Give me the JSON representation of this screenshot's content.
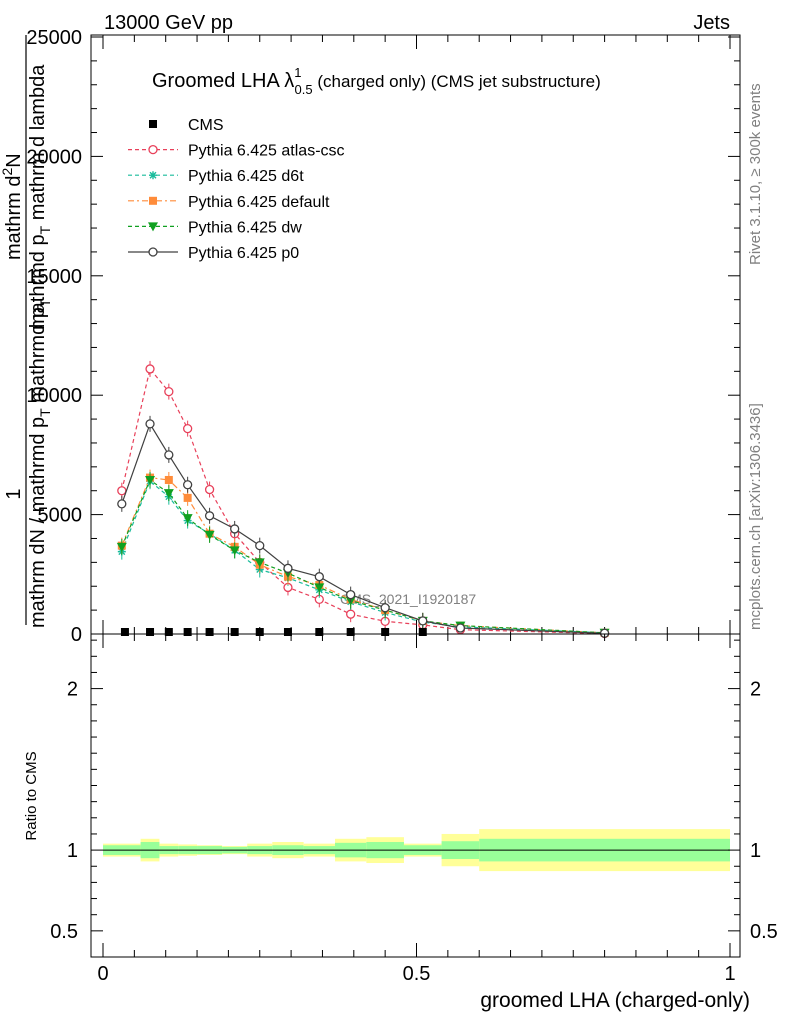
{
  "header": {
    "left": "13000 GeV pp",
    "right": "Jets"
  },
  "side": {
    "rivet": "Rivet 3.1.10, ≥ 300k events",
    "mcplots": "mcplots.cern.ch [arXiv:1306.3436]"
  },
  "chart_data": [
    {
      "type": "line",
      "title": "Groomed LHA λ^1_0.5 (charged only) (CMS jet substructure)",
      "title_main": "Groomed LHA ",
      "title_lambda": "λ",
      "title_sup": "1",
      "title_sub": "0.5",
      "title_tail": " (charged only) (CMS jet substructure)",
      "ylabel_lines": [
        "1",
        "mathrm dN / mathrmd p_T mathrmd p_T",
        "mathrm d^2N",
        "mathrm d lambda",
        "mathrm d p_T mathrm d lambda"
      ],
      "ylabel_num": "1",
      "ylabel_den": "mathrm dN / mathrmd p",
      "ylabel_den_sub": "T",
      "ylabel_den_tail": " mathrmd p",
      "ylabel_den_sub2": "T",
      "ylabel_right_num": "mathrm d",
      "ylabel_right_sup": "2",
      "ylabel_right_num_tail": "N",
      "ylabel_right_den": "mathrmd p",
      "ylabel_right_den_sub": "T",
      "ylabel_right_den_tail": " mathrm d lambda",
      "watermark": "CMS_2021_I1920187",
      "xlim": [
        0,
        1
      ],
      "ylim": [
        0,
        25000
      ],
      "yticks": [
        "0",
        "5000",
        "10000",
        "15000",
        "20000",
        "25000"
      ],
      "ytick_values": [
        0,
        5000,
        10000,
        15000,
        20000,
        25000
      ],
      "legend_position": "top-left",
      "series": [
        {
          "name": "CMS",
          "color": "#000000",
          "marker": "square",
          "x": [
            0.035,
            0.075,
            0.105,
            0.135,
            0.17,
            0.21,
            0.25,
            0.295,
            0.345,
            0.395,
            0.45,
            0.51
          ],
          "y": [
            20,
            30,
            30,
            25,
            25,
            20,
            20,
            20,
            18,
            15,
            12,
            8
          ]
        },
        {
          "name": "Pythia 6.425 atlas-csc",
          "color": "#e8405a",
          "marker": "open-circle",
          "dash": "4,3",
          "x": [
            0.03,
            0.075,
            0.105,
            0.135,
            0.17,
            0.21,
            0.25,
            0.295,
            0.345,
            0.395,
            0.45,
            0.51,
            0.57,
            0.8
          ],
          "y": [
            6000,
            11100,
            10150,
            8600,
            6050,
            4200,
            3000,
            1950,
            1450,
            830,
            530,
            380,
            180,
            20
          ]
        },
        {
          "name": "Pythia 6.425 d6t",
          "color": "#1abc9c",
          "marker": "star",
          "dash": "4,3",
          "x": [
            0.03,
            0.075,
            0.105,
            0.135,
            0.17,
            0.21,
            0.25,
            0.295,
            0.345,
            0.395,
            0.45,
            0.51,
            0.57,
            0.8
          ],
          "y": [
            3450,
            6400,
            5750,
            4750,
            4200,
            3500,
            2700,
            2350,
            1850,
            1350,
            900,
            500,
            300,
            50
          ]
        },
        {
          "name": "Pythia 6.425 default",
          "color": "#ff8c3a",
          "marker": "square",
          "dash": "6,3,2,3",
          "x": [
            0.03,
            0.075,
            0.105,
            0.135,
            0.17,
            0.21,
            0.25,
            0.295,
            0.345,
            0.395,
            0.45,
            0.51,
            0.57,
            0.8
          ],
          "y": [
            3700,
            6550,
            6450,
            5700,
            4200,
            3650,
            2900,
            2400,
            2050,
            1450,
            1000,
            550,
            350,
            50
          ]
        },
        {
          "name": "Pythia 6.425 dw",
          "color": "#10a020",
          "marker": "down-triangle",
          "dash": "4,3",
          "x": [
            0.03,
            0.075,
            0.105,
            0.135,
            0.17,
            0.21,
            0.25,
            0.295,
            0.345,
            0.395,
            0.45,
            0.51,
            0.57,
            0.8
          ],
          "y": [
            3650,
            6450,
            5900,
            4850,
            4150,
            3500,
            3000,
            2550,
            1950,
            1400,
            1000,
            550,
            350,
            50
          ]
        },
        {
          "name": "Pythia 6.425 p0",
          "color": "#404040",
          "marker": "open-circle",
          "dash": "",
          "x": [
            0.03,
            0.075,
            0.105,
            0.135,
            0.17,
            0.21,
            0.25,
            0.295,
            0.345,
            0.395,
            0.45,
            0.51,
            0.57,
            0.8
          ],
          "y": [
            5450,
            8800,
            7500,
            6250,
            4950,
            4400,
            3700,
            2750,
            2400,
            1650,
            1100,
            550,
            250,
            30
          ]
        }
      ]
    },
    {
      "type": "area",
      "ylabel": "Ratio to CMS",
      "xlabel": "groomed LHA (charged-only)",
      "xlim": [
        0,
        1
      ],
      "ylim": [
        0.4,
        2.4
      ],
      "xticks": [
        "0",
        "0.5",
        "1"
      ],
      "xtick_values": [
        0,
        0.5,
        1
      ],
      "yticks": [
        "0.5",
        "1",
        "2"
      ],
      "ytick_values": [
        0.5,
        1,
        2
      ],
      "bin_edges": [
        0.0,
        0.06,
        0.09,
        0.12,
        0.15,
        0.19,
        0.23,
        0.27,
        0.32,
        0.37,
        0.42,
        0.48,
        0.54,
        0.6,
        1.0
      ],
      "band_inner": [
        [
          0.97,
          1.03
        ],
        [
          0.95,
          1.05
        ],
        [
          0.975,
          1.025
        ],
        [
          0.975,
          1.025
        ],
        [
          0.975,
          1.025
        ],
        [
          0.98,
          1.02
        ],
        [
          0.975,
          1.025
        ],
        [
          0.97,
          1.03
        ],
        [
          0.975,
          1.025
        ],
        [
          0.955,
          1.045
        ],
        [
          0.95,
          1.05
        ],
        [
          0.97,
          1.03
        ],
        [
          0.945,
          1.055
        ],
        [
          0.93,
          1.07
        ]
      ],
      "band_outer": [
        [
          0.96,
          1.04
        ],
        [
          0.93,
          1.07
        ],
        [
          0.96,
          1.04
        ],
        [
          0.965,
          1.035
        ],
        [
          0.97,
          1.03
        ],
        [
          0.975,
          1.025
        ],
        [
          0.96,
          1.04
        ],
        [
          0.95,
          1.05
        ],
        [
          0.96,
          1.04
        ],
        [
          0.93,
          1.07
        ],
        [
          0.92,
          1.08
        ],
        [
          0.96,
          1.04
        ],
        [
          0.9,
          1.1
        ],
        [
          0.87,
          1.13
        ]
      ],
      "inner_color": "#99ff99",
      "outer_color": "#ffff99",
      "reference_line": 1
    }
  ]
}
